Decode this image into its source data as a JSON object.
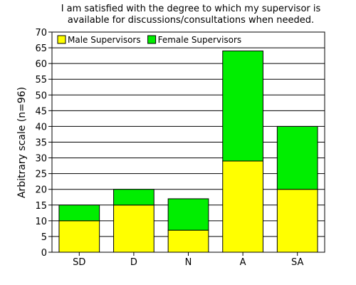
{
  "chart_data": {
    "type": "bar",
    "stacked": true,
    "title_lines": [
      "I am satisfied with the degree to which my supervisor is",
      "available for discussions/consultations when needed."
    ],
    "xlabel": "",
    "ylabel": "Arbitrary scale (n=96)",
    "ylim": [
      0,
      70
    ],
    "ytick_step": 5,
    "grid": true,
    "legend_placement": "top-left",
    "categories": [
      "SD",
      "D",
      "N",
      "A",
      "SA"
    ],
    "series": [
      {
        "name": "Male Supervisors",
        "values": [
          10,
          15,
          7,
          29,
          20
        ],
        "color": "#ffff00"
      },
      {
        "name": "Female Supervisors",
        "values": [
          5,
          5,
          10,
          35,
          20
        ],
        "color": "#00ee00"
      }
    ]
  }
}
